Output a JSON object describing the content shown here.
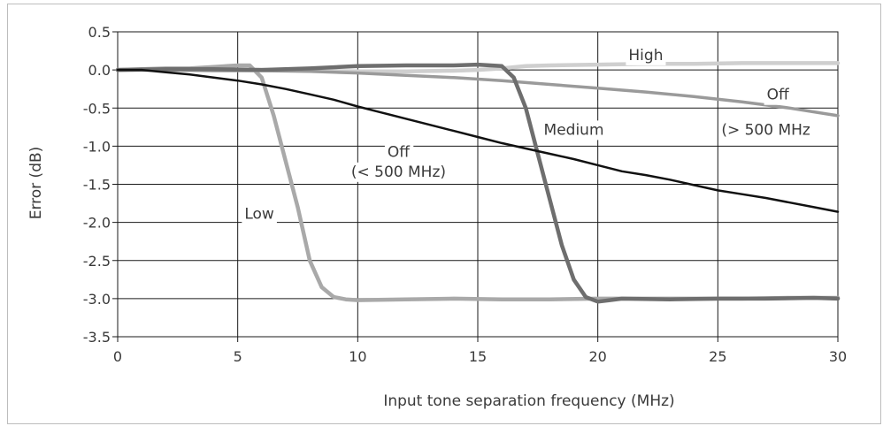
{
  "chart_data": {
    "type": "line",
    "title": "",
    "xlabel": "Input tone separation frequency (MHz)",
    "ylabel": "Error (dB)",
    "xlim": [
      0,
      30
    ],
    "ylim": [
      -3.5,
      0.5
    ],
    "x_ticks": [
      0,
      5,
      10,
      15,
      20,
      25,
      30
    ],
    "y_ticks": [
      0.5,
      0.0,
      -0.5,
      -1.0,
      -1.5,
      -2.0,
      -2.5,
      -3.0,
      -3.5
    ],
    "x_tick_labels": [
      "0",
      "5",
      "10",
      "15",
      "20",
      "25",
      "30"
    ],
    "y_tick_labels": [
      "0.5",
      "0.0",
      "-0.5",
      "-1.0",
      "-1.5",
      "-2.0",
      "-2.5",
      "-3.0",
      "-3.5"
    ],
    "grid": true,
    "series": [
      {
        "name": "Off (< 500 MHz)",
        "color": "#111111",
        "x": [
          0,
          1,
          2,
          3,
          4,
          5,
          6,
          7,
          8,
          9,
          10,
          11,
          12,
          13,
          14,
          15,
          16,
          17,
          18,
          19,
          20,
          21,
          22,
          23,
          24,
          25,
          26,
          27,
          28,
          29,
          30
        ],
        "y": [
          0.0,
          0.0,
          -0.03,
          -0.06,
          -0.1,
          -0.14,
          -0.19,
          -0.25,
          -0.32,
          -0.39,
          -0.48,
          -0.56,
          -0.64,
          -0.72,
          -0.8,
          -0.88,
          -0.96,
          -1.03,
          -1.1,
          -1.17,
          -1.25,
          -1.33,
          -1.38,
          -1.44,
          -1.51,
          -1.58,
          -1.63,
          -1.68,
          -1.74,
          -1.8,
          -1.86
        ]
      },
      {
        "name": "Low",
        "color": "#a9a9a9",
        "x": [
          0,
          1,
          2,
          3,
          4,
          5,
          5.5,
          6,
          6.5,
          7,
          7.5,
          8,
          8.5,
          9,
          9.5,
          10,
          12,
          14,
          16,
          18,
          20,
          22,
          24,
          26,
          28,
          30
        ],
        "y": [
          0.0,
          0.01,
          0.02,
          0.02,
          0.04,
          0.06,
          0.06,
          -0.1,
          -0.6,
          -1.2,
          -1.8,
          -2.5,
          -2.85,
          -2.98,
          -3.01,
          -3.02,
          -3.01,
          -3.0,
          -3.01,
          -3.01,
          -3.0,
          -3.0,
          -3.0,
          -3.0,
          -2.99,
          -2.99
        ]
      },
      {
        "name": "Medium",
        "color": "#6e6e6e",
        "x": [
          0,
          2,
          4,
          6,
          8,
          10,
          12,
          14,
          15,
          16,
          16.5,
          17,
          17.5,
          18,
          18.5,
          19,
          19.5,
          20,
          20.5,
          21,
          23,
          25,
          27,
          29,
          30
        ],
        "y": [
          0.0,
          0.01,
          0.01,
          0.0,
          0.02,
          0.05,
          0.06,
          0.06,
          0.07,
          0.05,
          -0.1,
          -0.5,
          -1.1,
          -1.7,
          -2.3,
          -2.75,
          -2.98,
          -3.04,
          -3.02,
          -3.0,
          -3.01,
          -3.0,
          -3.0,
          -2.99,
          -3.0
        ]
      },
      {
        "name": "High",
        "color": "#cfcfcf",
        "x": [
          0,
          2,
          4,
          6,
          8,
          10,
          12,
          14,
          15,
          16,
          17,
          18,
          20,
          22,
          24,
          26,
          28,
          30
        ],
        "y": [
          0.0,
          0.0,
          0.0,
          0.0,
          -0.01,
          -0.02,
          -0.02,
          -0.01,
          0.0,
          0.02,
          0.05,
          0.06,
          0.07,
          0.08,
          0.08,
          0.09,
          0.09,
          0.09
        ]
      },
      {
        "name": "Off (> 500 MHz)",
        "color": "#9a9a9a",
        "x": [
          0,
          2,
          4,
          6,
          8,
          10,
          12,
          14,
          16,
          18,
          20,
          22,
          24,
          26,
          28,
          30
        ],
        "y": [
          0.0,
          0.0,
          -0.01,
          -0.01,
          -0.02,
          -0.04,
          -0.07,
          -0.1,
          -0.14,
          -0.19,
          -0.24,
          -0.29,
          -0.35,
          -0.42,
          -0.5,
          -0.6
        ]
      }
    ],
    "annotations": [
      {
        "text": "High",
        "x": 22.0,
        "y": 0.2
      },
      {
        "text": "Off",
        "x": 27.5,
        "y": -0.32
      },
      {
        "text": "(> 500 MHz",
        "x": 27.0,
        "y": -0.78
      },
      {
        "text": "Medium",
        "x": 19.0,
        "y": -0.78
      },
      {
        "text": "Off",
        "x": 11.7,
        "y": -1.07
      },
      {
        "text": "(< 500 MHz)",
        "x": 11.7,
        "y": -1.33
      },
      {
        "text": "Low",
        "x": 5.9,
        "y": -1.88
      }
    ]
  }
}
